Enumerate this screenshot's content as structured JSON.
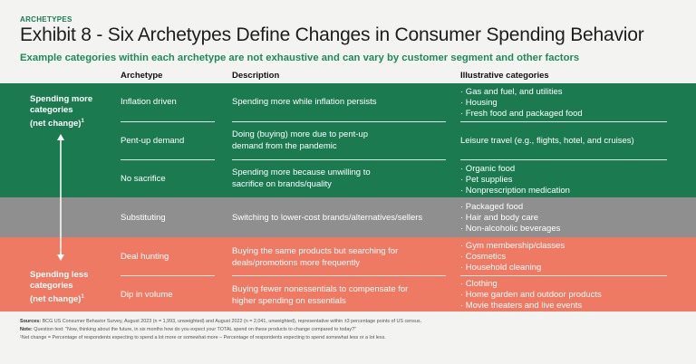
{
  "header": {
    "kicker": "ARCHETYPES",
    "title": "Exhibit 8 - Six Archetypes Define Changes in Consumer Spending Behavior",
    "subtitle": "Example categories within each archetype are not exhaustive and can vary by customer segment and other factors"
  },
  "columns": {
    "archetype": "Archetype",
    "description": "Description",
    "categories": "Illustrative categories"
  },
  "side_labels": {
    "more": {
      "line1": "Spending more",
      "line2": "categories",
      "line3": "(net change)",
      "sup": "1"
    },
    "less": {
      "line1": "Spending less",
      "line2": "categories",
      "line3": "(net change)",
      "sup": "1"
    }
  },
  "rows": [
    {
      "archetype": "Inflation driven",
      "desc1": "Spending more while inflation persists",
      "desc2": "",
      "cats": [
        "· Gas and fuel, and utilities",
        "· Housing",
        "· Fresh food and packaged food"
      ]
    },
    {
      "archetype": "Pent-up demand",
      "desc1": "Doing (buying) more due to pent-up",
      "desc2": "demand from the pandemic",
      "cats": [
        "Leisure travel (e.g., flights, hotel, and cruises)"
      ]
    },
    {
      "archetype": "No sacrifice",
      "desc1": "Spending more because unwilling to",
      "desc2": "sacrifice on brands/quality",
      "cats": [
        "· Organic food",
        "· Pet supplies",
        "· Nonprescription medication"
      ]
    },
    {
      "archetype": "Substituting",
      "desc1": "Switching to lower-cost brands/alternatives/sellers",
      "desc2": "",
      "cats": [
        "· Packaged food",
        "· Hair and body care",
        "· Non-alcoholic beverages"
      ]
    },
    {
      "archetype": "Deal hunting",
      "desc1": "Buying the same products but searching for",
      "desc2": "deals/promotions more frequently",
      "cats": [
        "· Gym membership/classes",
        "· Cosmetics",
        "· Household cleaning"
      ]
    },
    {
      "archetype": "Dip in volume",
      "desc1": "Buying fewer nonessentials to compensate for",
      "desc2": "higher spending on essentials",
      "cats": [
        "· Clothing",
        "· Home garden and outdoor products",
        "· Movie theaters and live events"
      ]
    }
  ],
  "footnotes": {
    "sources_label": "Sources:",
    "sources": "BCG US Consumer Behavior Survey, August 2023 (n = 1,993, unweighted) and August 2022 (n = 2,041, unweighted), representative within ±3 percentage points of US census.",
    "note_label": "Note:",
    "note": "Question text: \"Now, thinking about the future, in six months how do you expect your TOTAL spend on these products to change compared to today?\"",
    "footnote": "¹Net change = Percentage of respondents expecting to spend a lot more or somewhat more – Percentage of respondents expecting to spend somewhat less or a lot less."
  },
  "colors": {
    "green": "#1c7a50",
    "gray": "#8f8f8f",
    "salmon": "#ee7a64",
    "accent": "#1f8a58"
  }
}
